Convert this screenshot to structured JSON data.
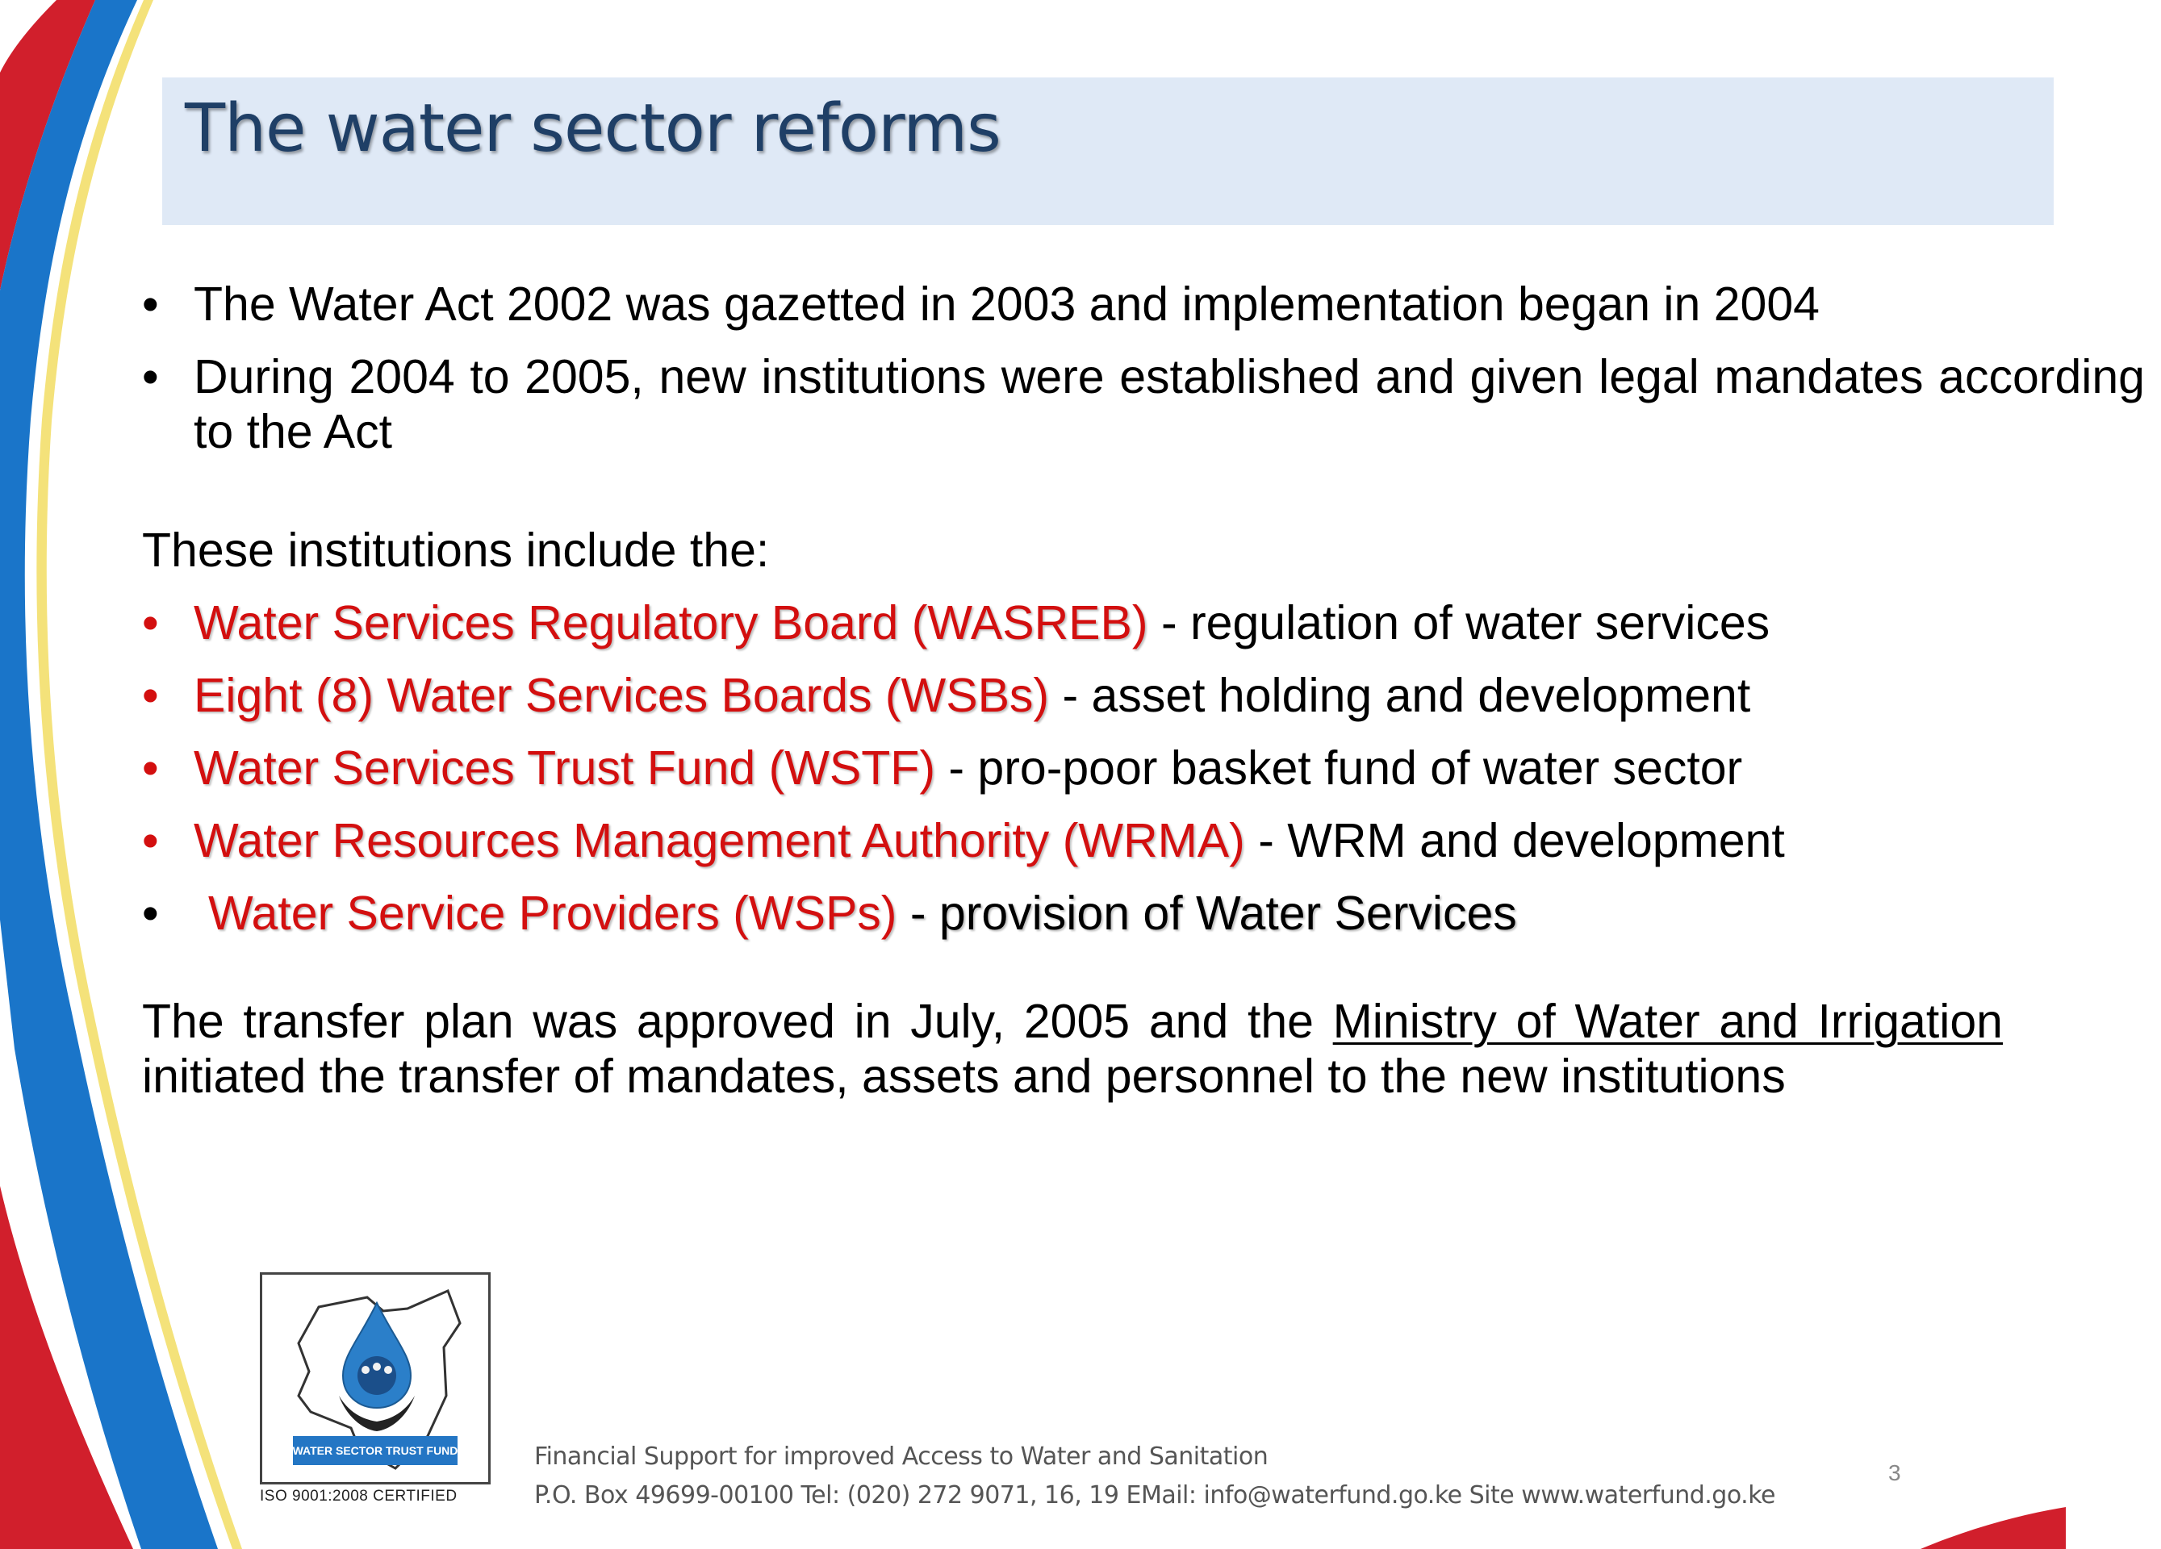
{
  "slide": {
    "title": "The water sector reforms",
    "bullets_top": [
      "The Water Act 2002 was gazetted in 2003 and implementation began in 2004",
      "During 2004 to 2005, new  institutions  were  established  and  given  legal mandates  according  to  the  Act"
    ],
    "intro": "These institutions include the:",
    "institutions": [
      {
        "name": "Water Services Regulatory Board (WASREB)",
        "desc": " - regulation of water services"
      },
      {
        "name": "Eight (8) Water Services Boards (WSBs)",
        "desc": " - asset holding and development"
      },
      {
        "name": "Water Services Trust Fund (WSTF)",
        "desc": " - pro-poor basket fund of water sector"
      },
      {
        "name": "Water Resources Management Authority (WRMA)",
        "desc": " - WRM and development"
      },
      {
        "name": "Water Service Providers (WSPs)",
        "desc": " - provision of Water Services"
      }
    ],
    "transfer": {
      "before": "The transfer plan was approved in July, 2005 and the ",
      "underlined": "Ministry of Water and Irrigation",
      "after": " initiated the transfer of mandates, assets and personnel to the new institutions"
    },
    "bullet_symbol": "•"
  },
  "footer": {
    "logo_label": "WATER SECTOR TRUST FUND",
    "iso": "ISO 9001:2008 CERTIFIED",
    "line1": "Financial Support for improved Access to Water and Sanitation",
    "line2": "P.O. Box 49699-00100 Tel: (020) 272 9071, 16, 19 EMail: info@waterfund.go.ke Site www.waterfund.go.ke",
    "page_number": "3"
  },
  "colors": {
    "title": "#1f3f66",
    "title_band": "#dfe9f6",
    "institution_red": "#d30f0f",
    "swoosh_red": "#d11f2c",
    "swoosh_blue": "#1a75c9",
    "swoosh_yellow": "#f4e27a"
  }
}
